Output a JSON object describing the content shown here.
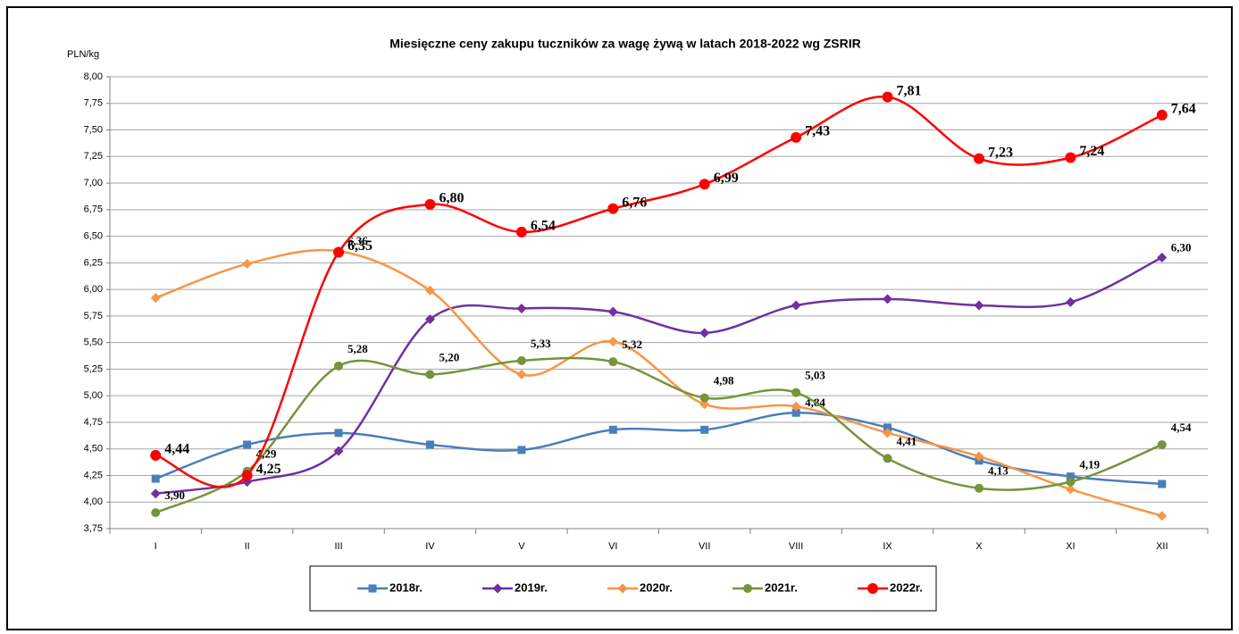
{
  "chart_data": {
    "type": "line",
    "title": "Miesięczne ceny zakupu tuczników za wagę żywą w latach 2018-2022 wg ZSRIR",
    "y_label": "PLN/kg",
    "categories": [
      "I",
      "II",
      "III",
      "IV",
      "V",
      "VI",
      "VII",
      "VIII",
      "IX",
      "X",
      "XI",
      "XII"
    ],
    "ylim": [
      3.75,
      8.0
    ],
    "yticks": [
      {
        "value": 3.75,
        "label": "3,75"
      },
      {
        "value": 4.0,
        "label": "4,00"
      },
      {
        "value": 4.25,
        "label": "4,25"
      },
      {
        "value": 4.5,
        "label": "4,50"
      },
      {
        "value": 4.75,
        "label": "4,75"
      },
      {
        "value": 5.0,
        "label": "5,00"
      },
      {
        "value": 5.25,
        "label": "5,25"
      },
      {
        "value": 5.5,
        "label": "5,50"
      },
      {
        "value": 5.75,
        "label": "5,75"
      },
      {
        "value": 6.0,
        "label": "6,00"
      },
      {
        "value": 6.25,
        "label": "6,25"
      },
      {
        "value": 6.5,
        "label": "6,50"
      },
      {
        "value": 6.75,
        "label": "6,75"
      },
      {
        "value": 7.0,
        "label": "7,00"
      },
      {
        "value": 7.25,
        "label": "7,25"
      },
      {
        "value": 7.5,
        "label": "7,50"
      },
      {
        "value": 7.75,
        "label": "7,75"
      },
      {
        "value": 8.0,
        "label": "8,00"
      }
    ],
    "grid": true,
    "legend": "bottom",
    "series": [
      {
        "name": "2018r.",
        "color": "#4a7ebb",
        "marker": "square",
        "values": [
          4.22,
          4.54,
          4.65,
          4.54,
          4.49,
          4.68,
          4.68,
          4.84,
          4.7,
          4.39,
          4.24,
          4.17
        ],
        "value_labels": [
          null,
          null,
          null,
          null,
          null,
          null,
          null,
          "4,84",
          null,
          null,
          null,
          null
        ]
      },
      {
        "name": "2019r.",
        "color": "#7030a0",
        "marker": "diamond",
        "values": [
          4.08,
          4.19,
          4.48,
          5.72,
          5.82,
          5.79,
          5.59,
          5.85,
          5.91,
          5.85,
          5.88,
          6.3
        ],
        "value_labels": [
          null,
          null,
          null,
          null,
          null,
          null,
          null,
          null,
          null,
          null,
          null,
          "6,30"
        ]
      },
      {
        "name": "2020r.",
        "color": "#f79646",
        "marker": "diamond",
        "values": [
          5.92,
          6.24,
          6.36,
          5.99,
          5.2,
          5.51,
          4.92,
          4.9,
          4.65,
          4.43,
          4.12,
          3.87
        ],
        "value_labels": [
          null,
          null,
          "6,36",
          null,
          null,
          null,
          null,
          null,
          null,
          null,
          null,
          null
        ]
      },
      {
        "name": "2021r.",
        "color": "#77933c",
        "marker": "circle",
        "values": [
          3.9,
          4.29,
          5.28,
          5.2,
          5.33,
          5.32,
          4.98,
          5.03,
          4.41,
          4.13,
          4.19,
          4.54
        ],
        "value_labels": [
          "3,90",
          "4,29",
          "5,28",
          "5,20",
          "5,33",
          "5,32",
          "4,98",
          "5,03",
          "4,41",
          "4,13",
          "4,19",
          "4,54"
        ]
      },
      {
        "name": "2022r.",
        "color": "#ff0000",
        "marker": "circle-large",
        "values": [
          4.44,
          4.25,
          6.35,
          6.8,
          6.54,
          6.76,
          6.99,
          7.43,
          7.81,
          7.23,
          7.24,
          7.64
        ],
        "value_labels": [
          "4,44",
          "4,25",
          "6,35",
          "6,80",
          "6,54",
          "6,76",
          "6,99",
          "7,43",
          "7,81",
          "7,23",
          "7,24",
          "7,64"
        ]
      }
    ]
  }
}
